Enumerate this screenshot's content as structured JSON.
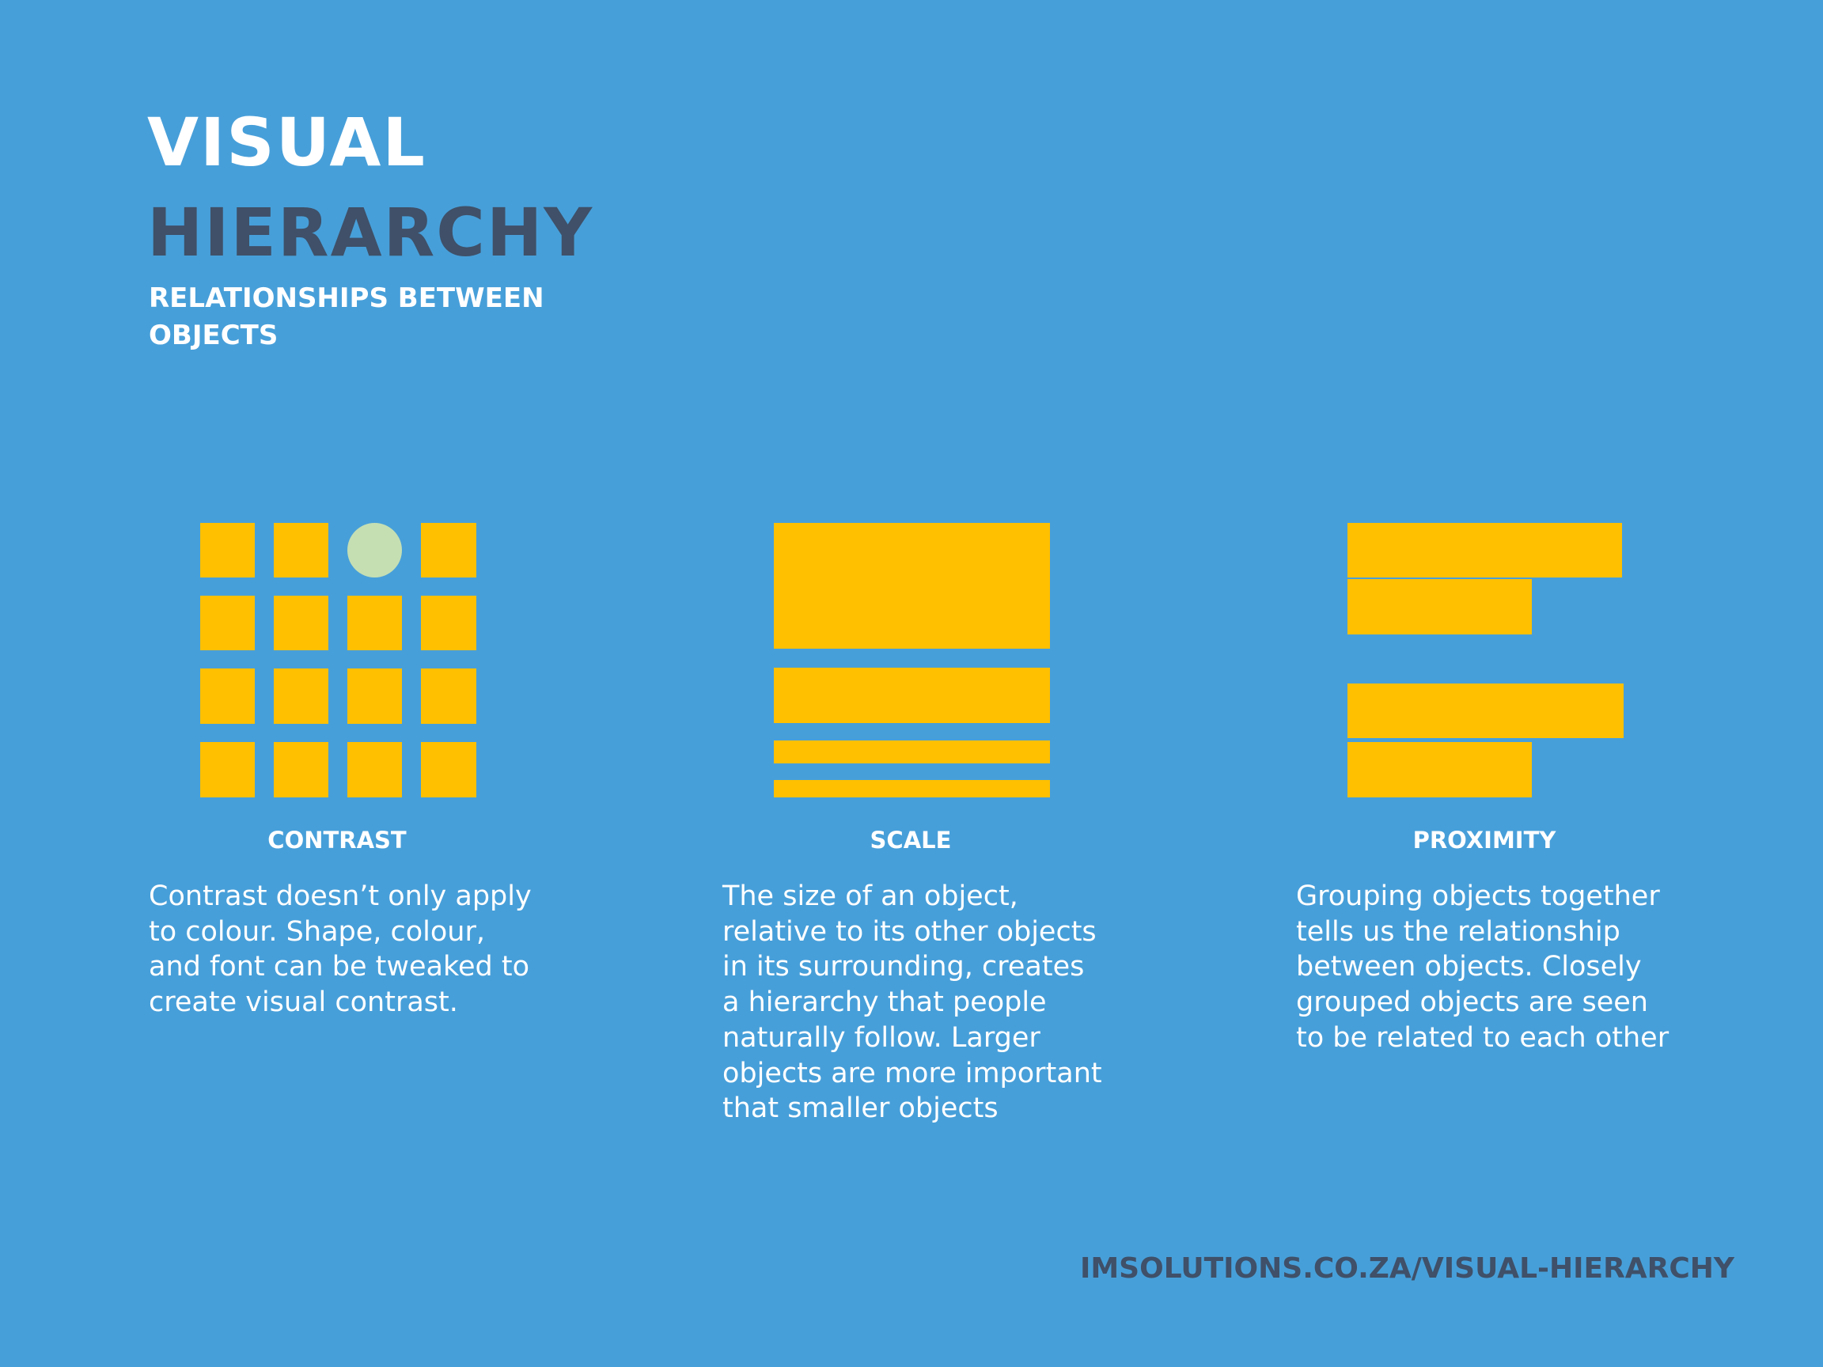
{
  "header": {
    "title_line1": "VISUAL",
    "title_line2": "HIERARCHY",
    "subtitle": "RELATIONSHIPS BETWEEN OBJECTS"
  },
  "colors": {
    "background": "#479fd9",
    "shape": "#ffc000",
    "accent_circle": "#c5dfb3",
    "title_dark": "#3f5068",
    "text_light": "#ffffff"
  },
  "principles": [
    {
      "heading": "CONTRAST",
      "body": "Contrast doesn’t only apply\nto colour. Shape, colour,\nand font can be tweaked to\ncreate visual contrast."
    },
    {
      "heading": "SCALE",
      "body": "The size of an object,\nrelative to its other objects\nin its surrounding, creates\na hierarchy that people\nnaturally follow. Larger\nobjects are more important\nthat smaller objects"
    },
    {
      "heading": "PROXIMITY",
      "body": "Grouping objects together\ntells us the relationship\nbetween objects. Closely\ngrouped objects are seen\nto be related to each other"
    }
  ],
  "footer": {
    "url": "IMSOLUTIONS.CO.ZA/VISUAL-HIERARCHY"
  }
}
